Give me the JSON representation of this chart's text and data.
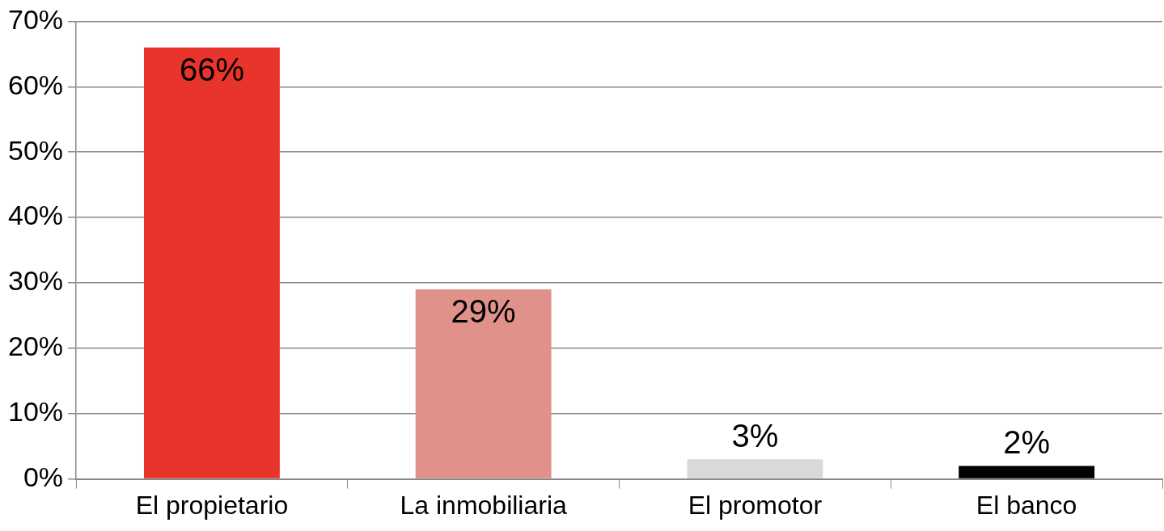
{
  "chart_data": {
    "type": "bar",
    "categories": [
      "El propietario",
      "La inmobiliaria",
      "El promotor",
      "El banco"
    ],
    "values": [
      66,
      29,
      3,
      2
    ],
    "colors": [
      "#e8342b",
      "#e0928a",
      "#d9d9d9",
      "#000000"
    ],
    "value_labels": [
      "66%",
      "29%",
      "3%",
      "2%"
    ],
    "ylim": [
      0,
      70
    ],
    "yticks": [
      {
        "value": 0,
        "label": "0%"
      },
      {
        "value": 10,
        "label": "10%"
      },
      {
        "value": 20,
        "label": "20%"
      },
      {
        "value": 30,
        "label": "30%"
      },
      {
        "value": 40,
        "label": "40%"
      },
      {
        "value": 50,
        "label": "50%"
      },
      {
        "value": 60,
        "label": "60%"
      },
      {
        "value": 70,
        "label": "70%"
      }
    ],
    "grid": "y",
    "legend": false
  }
}
